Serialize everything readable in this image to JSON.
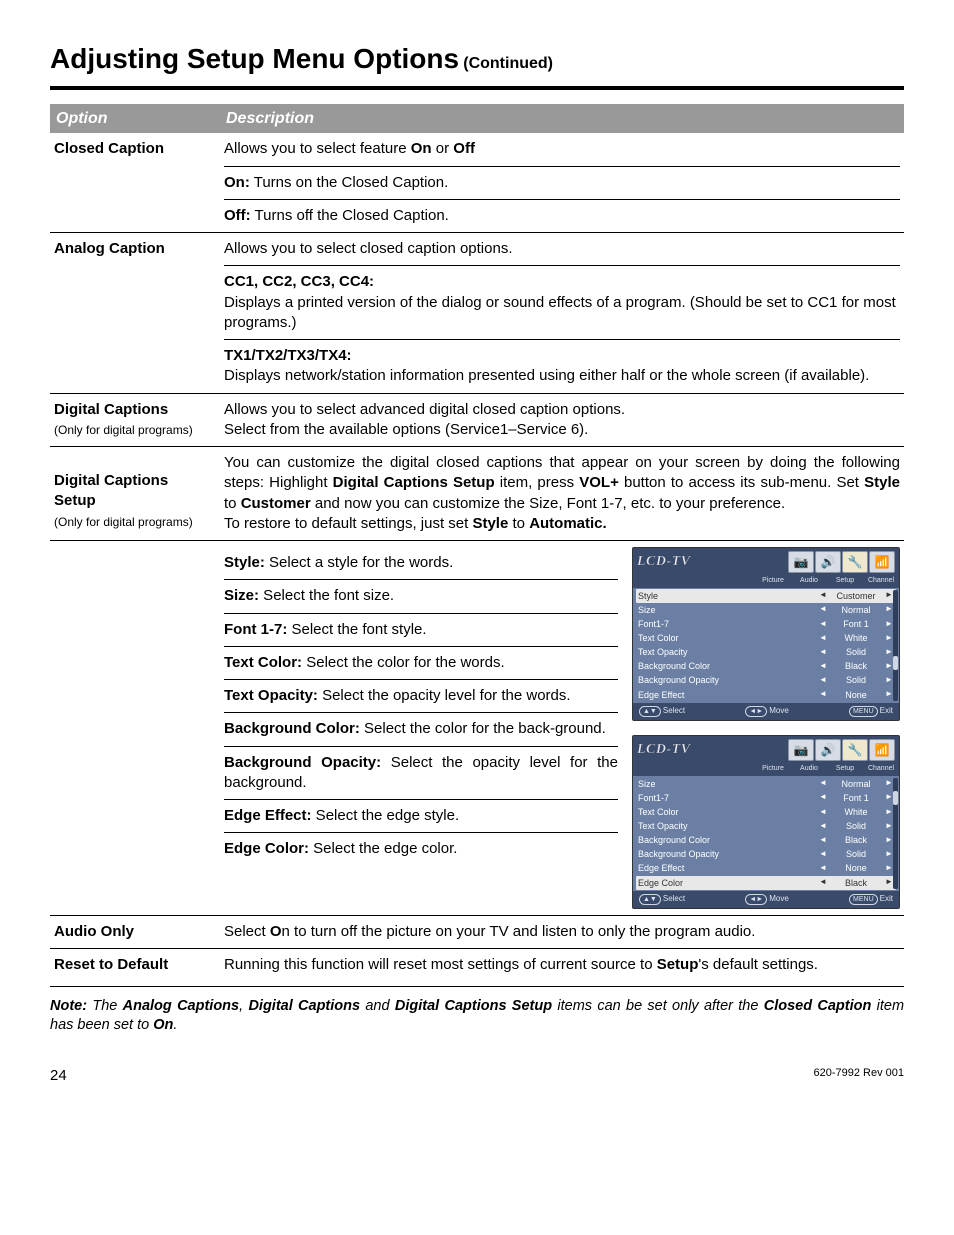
{
  "page": {
    "title": "Adjusting Setup Menu Options",
    "continued": "(Continued)",
    "page_number": "24",
    "rev": "620-7992 Rev 001"
  },
  "header": {
    "option": "Option",
    "description": "Description"
  },
  "rows": {
    "closed_caption": {
      "label": "Closed Caption",
      "line1_pre": "Allows you to select feature ",
      "on": "On",
      "or": " or ",
      "off": "Off",
      "on_label": "On:",
      "on_text": " Turns on the Closed Caption.",
      "off_label": "Off:",
      "off_text": " Turns off the Closed Caption."
    },
    "analog": {
      "label": "Analog Caption",
      "intro": "Allows you to select closed caption options.",
      "cc_head": "CC1, CC2, CC3, CC4:",
      "cc_text": "Displays a printed version of the dialog or sound effects of a program. (Should be set to CC1 for most programs.)",
      "tx_head": "TX1/TX2/TX3/TX4:",
      "tx_text": "Displays network/station information presented using either half or the whole screen (if available)."
    },
    "dig_cap": {
      "label": "Digital Captions",
      "sub": "(Only for digital programs)",
      "l1": "Allows you to select advanced digital closed caption options.",
      "l2": "Select from the available options (Service1–Service 6)."
    },
    "dig_setup": {
      "label1": "Digital Captions",
      "label2": "Setup",
      "sub": "(Only for digital programs)",
      "p1a": "You can customize the digital closed captions that appear on your screen by doing the following steps: Highlight ",
      "p1b": "Digital Captions Setup",
      "p1c": " item, press ",
      "p1d": "VOL+",
      "p1e": " button to access its sub-menu. Set ",
      "p1f": "Style",
      "p1g": " to ",
      "p1h": "Customer",
      "p1i": " and now you can customize the Size, Font 1-7, etc. to your preference.",
      "p2a": "To restore to default settings, just set ",
      "p2b": "Style",
      "p2c": " to ",
      "p2d": "Automatic."
    },
    "settings": {
      "style_b": "Style:",
      "style_t": " Select a style for the words.",
      "size_b": "Size:",
      "size_t": " Select the font size.",
      "font_b": "Font 1-7:",
      "font_t": " Select the font style.",
      "tc_b": "Text Color:",
      "tc_t": " Select the color for the words.",
      "to_b": "Text Opacity:",
      "to_t": " Select the opacity level for the words.",
      "bc_b": "Background Color:",
      "bc_t": " Select the color for the back-ground.",
      "bo_b": "Background Opacity:",
      "bo_t": " Select the opacity level for the background.",
      "ee_b": "Edge Effect:",
      "ee_t": " Select the edge style.",
      "ec_b": "Edge Color:",
      "ec_t": " Select the edge color."
    },
    "audio": {
      "label": "Audio Only",
      "pre": "Select ",
      "on": "O",
      "n": "n",
      "post": " to turn off the picture on your TV and listen to only the program audio."
    },
    "reset": {
      "label": "Reset to Default",
      "pre": "Running this function will reset most settings of current source to ",
      "setup": "Setup",
      "post": "'s default settings."
    }
  },
  "osd": {
    "logo": "LCD-TV",
    "tabs": [
      "Picture",
      "Audio",
      "Setup",
      "Channel"
    ],
    "foot": {
      "select": "Select",
      "move": "Move",
      "exit": "Exit"
    },
    "panel1": [
      {
        "k": "Style",
        "v": "Customer",
        "hl": true
      },
      {
        "k": "Size",
        "v": "Normal"
      },
      {
        "k": "Font1-7",
        "v": "Font 1"
      },
      {
        "k": "Text Color",
        "v": "White"
      },
      {
        "k": "Text Opacity",
        "v": "Solid"
      },
      {
        "k": "Background Color",
        "v": "Black"
      },
      {
        "k": "Background Opacity",
        "v": "Solid"
      },
      {
        "k": "Edge Effect",
        "v": "None"
      }
    ],
    "panel2": [
      {
        "k": "Size",
        "v": "Normal"
      },
      {
        "k": "Font1-7",
        "v": "Font 1"
      },
      {
        "k": "Text Color",
        "v": "White"
      },
      {
        "k": "Text Opacity",
        "v": "Solid"
      },
      {
        "k": "Background Color",
        "v": "Black"
      },
      {
        "k": "Background Opacity",
        "v": "Solid"
      },
      {
        "k": "Edge Effect",
        "v": "None"
      },
      {
        "k": "Edge Color",
        "v": "Black",
        "hl": true
      }
    ]
  },
  "note": {
    "lead": "Note:",
    "t1": " The ",
    "b1": "Analog Captions",
    "t2": ", ",
    "b2": "Digital Captions",
    "t3": " and ",
    "b3": "Digital Captions Setup",
    "t4": " items can be set only after the ",
    "b4": "Closed Caption",
    "t5": " item has been set to ",
    "b5": "On",
    "t6": "."
  },
  "colors": {
    "header_bg": "#999999",
    "osd_bg": "#6a7fa3",
    "osd_head_bg": "#3a4a6a"
  }
}
